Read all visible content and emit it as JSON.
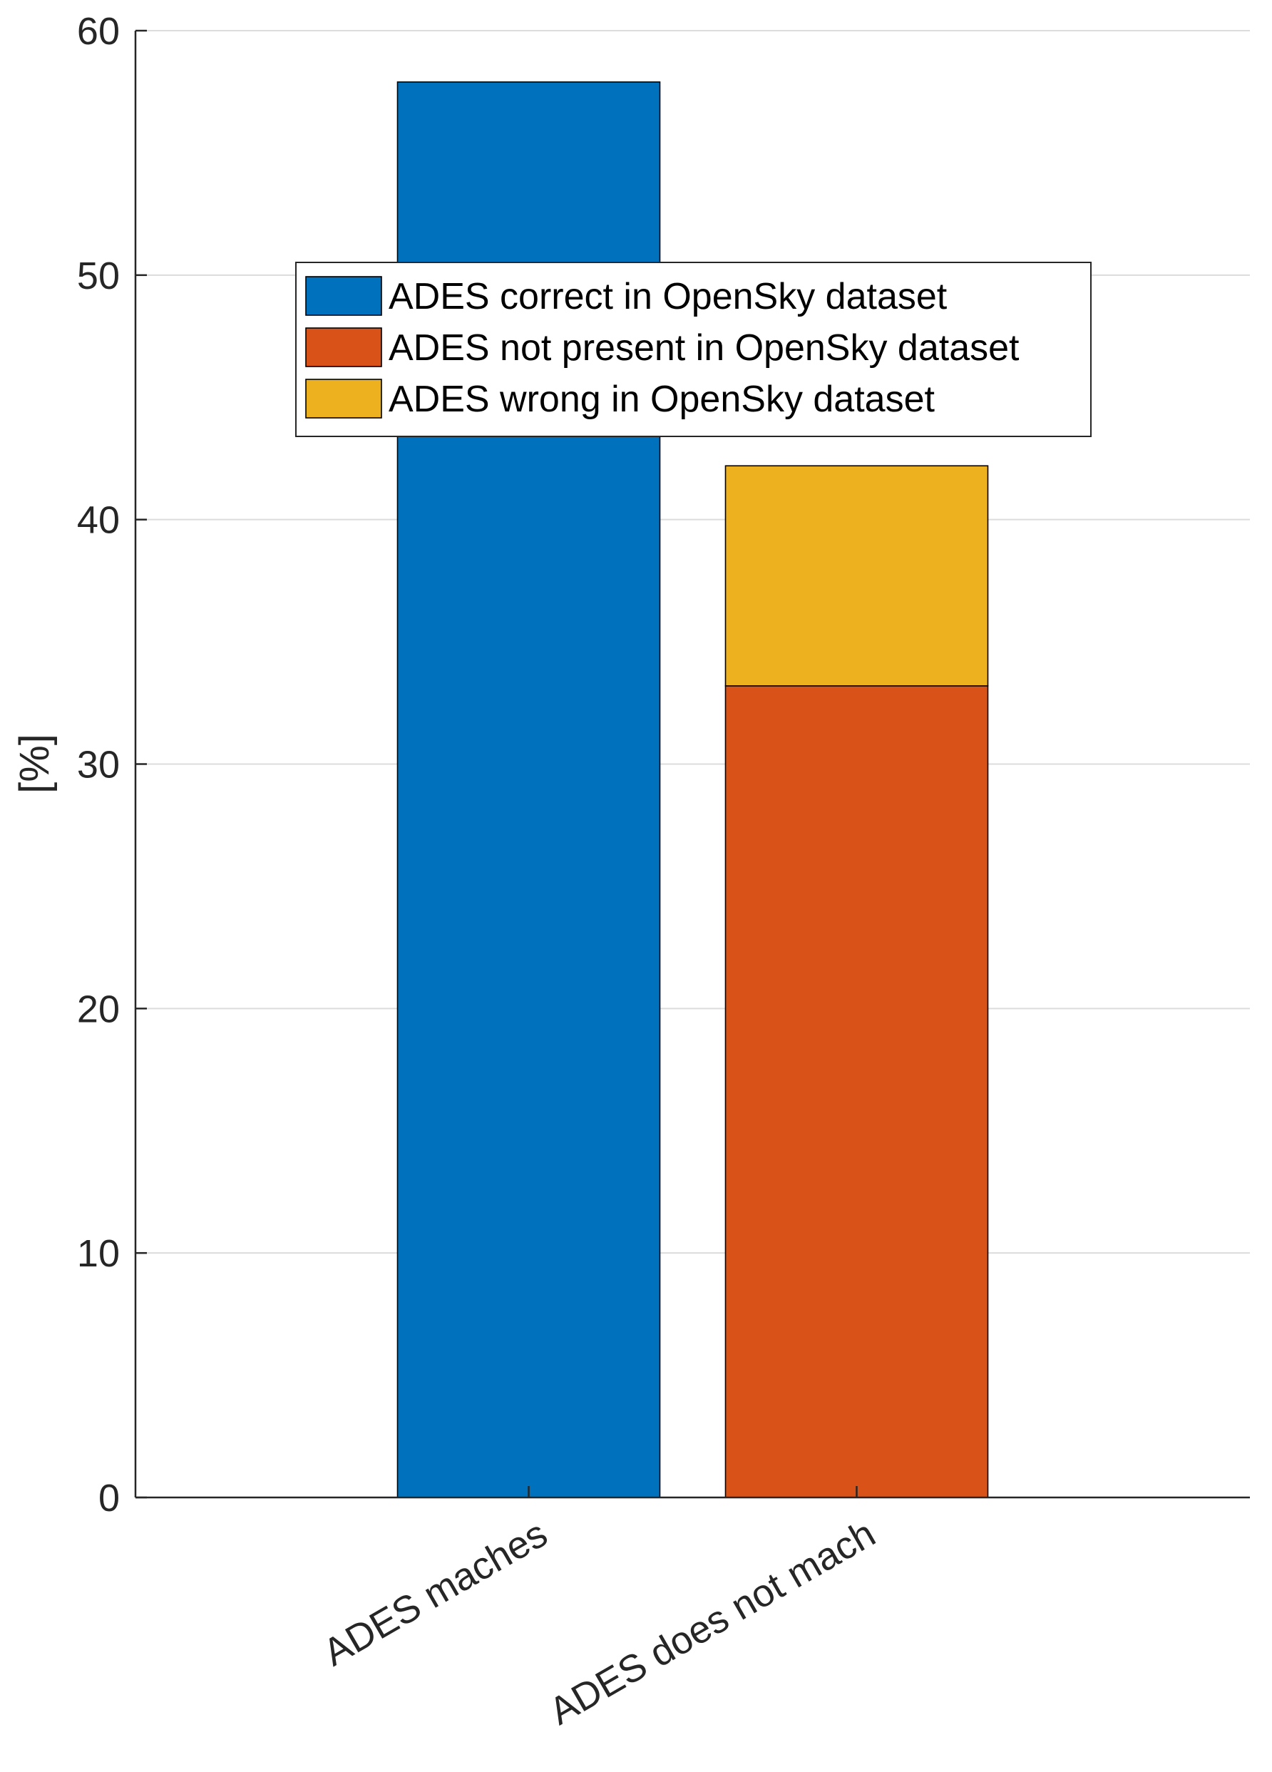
{
  "chart_data": {
    "type": "bar",
    "stacked": true,
    "categories": [
      "ADES maches",
      "ADES does not mach"
    ],
    "series": [
      {
        "name": "ADES correct in OpenSky dataset",
        "color": "#0072BD",
        "values": [
          57.9,
          0
        ]
      },
      {
        "name": "ADES not present in OpenSky dataset",
        "color": "#D95319",
        "values": [
          0,
          33.2
        ]
      },
      {
        "name": "ADES wrong in OpenSky dataset",
        "color": "#EDB120",
        "values": [
          0,
          9.0
        ]
      }
    ],
    "title": "",
    "xlabel": "",
    "ylabel": "[%]",
    "ylim": [
      0,
      60
    ],
    "yticks": [
      0,
      10,
      20,
      30,
      40,
      50,
      60
    ],
    "grid": true,
    "legend_position": "top-center"
  }
}
